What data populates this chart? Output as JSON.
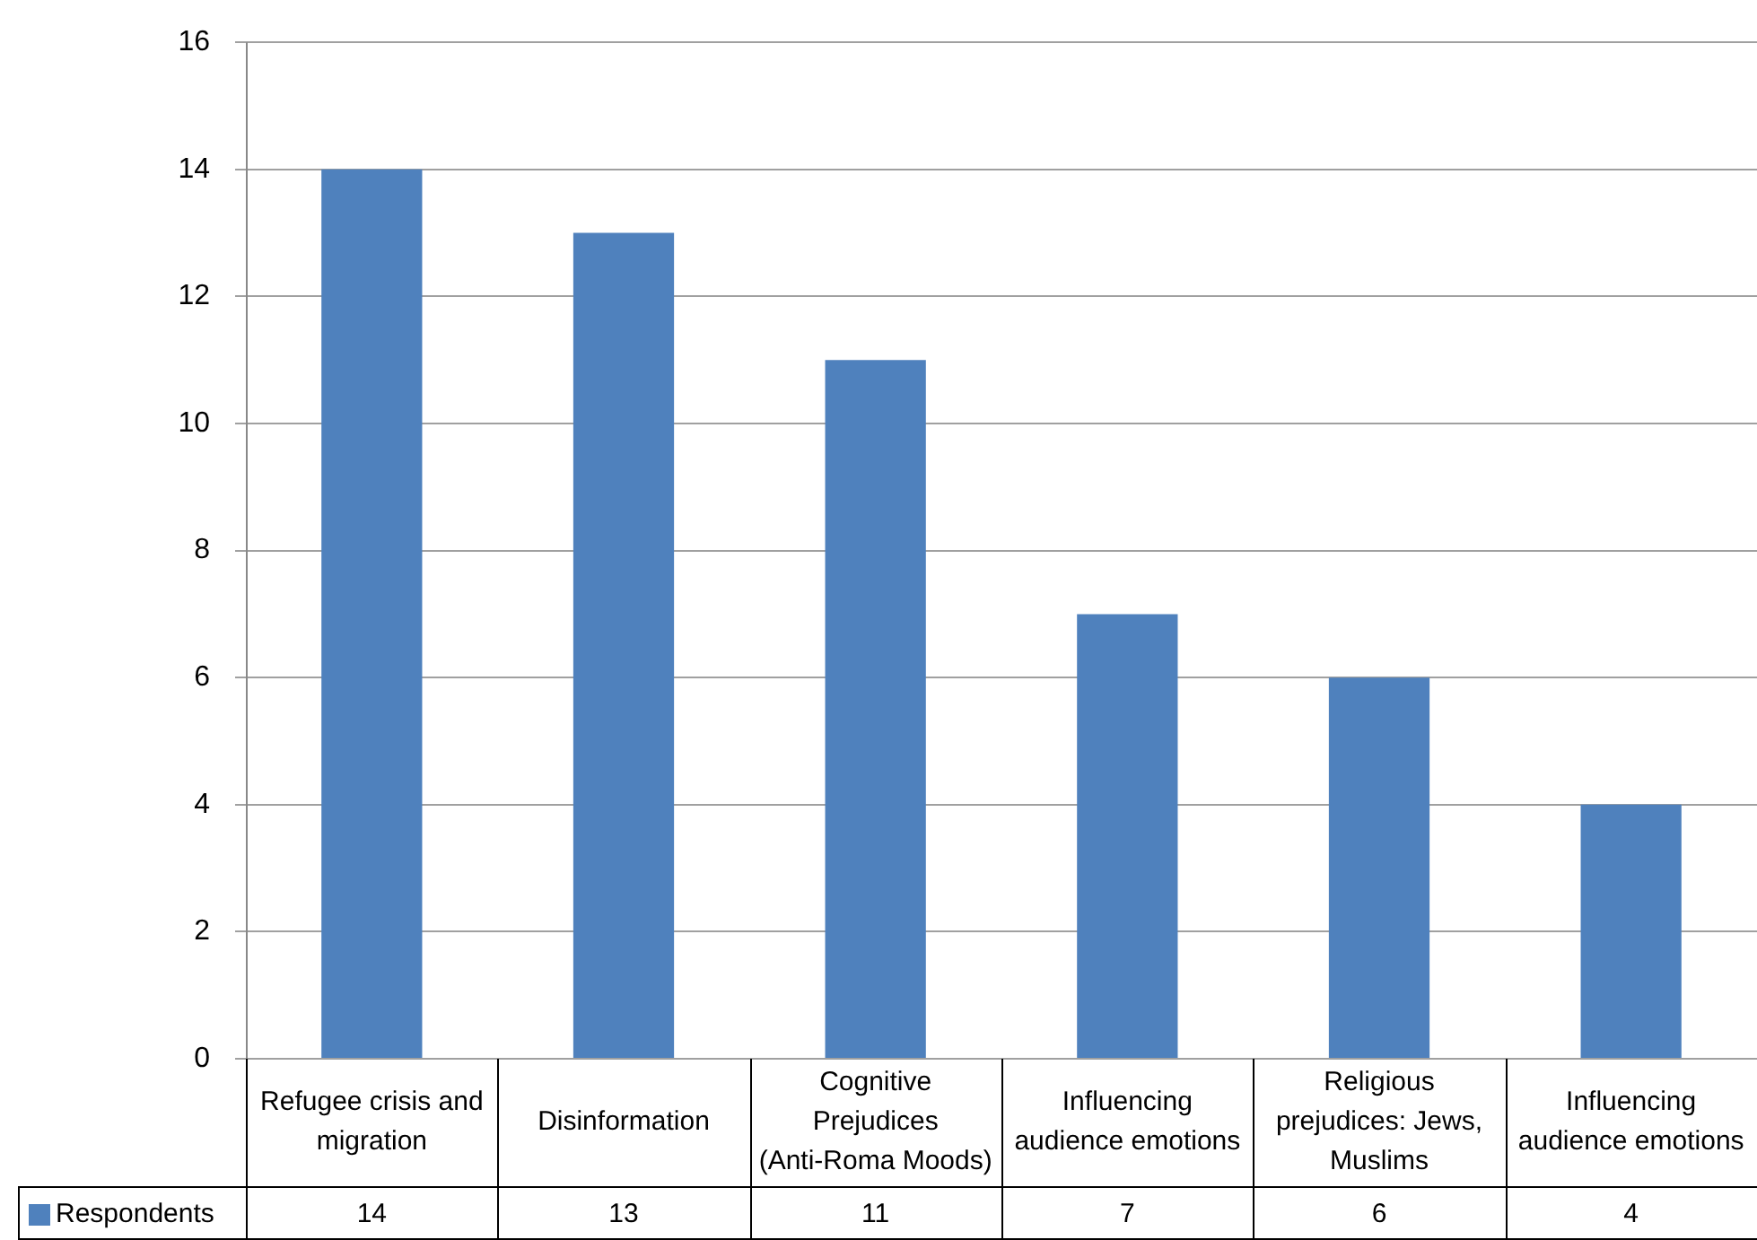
{
  "chart_data": {
    "type": "bar",
    "categories": [
      "Refugee crisis and migration",
      "Disinformation",
      "Cognitive Prejudices (Anti-Roma Moods)",
      "Influencing audience emotions",
      "Religious prejudices: Jews, Muslims",
      "Influencing audience emotions"
    ],
    "series": [
      {
        "name": "Respondents",
        "color": "#4f81bd",
        "values": [
          14,
          13,
          11,
          7,
          6,
          4
        ]
      }
    ],
    "ylim": [
      0,
      16
    ],
    "yticks": [
      0,
      2,
      4,
      6,
      8,
      10,
      12,
      14,
      16
    ],
    "grid": "y",
    "legend": "bottom left",
    "data_labels": true
  }
}
